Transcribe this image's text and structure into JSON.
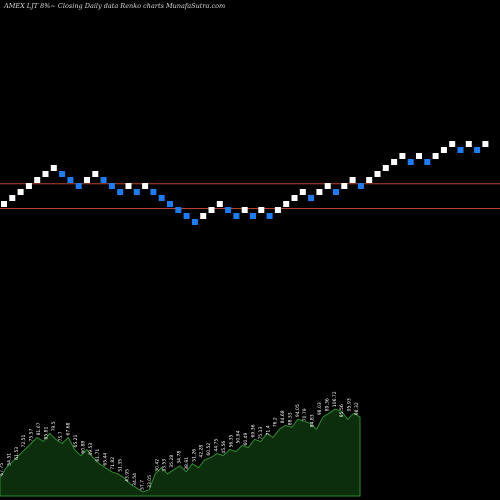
{
  "chart_data": {
    "type": "renko",
    "title": "AMEX LJT 8%~ Closing Daily data Renko charts MunafaSutra.com",
    "colors": {
      "background": "#000000",
      "up_brick": "#ffffff",
      "down_brick": "#1f7cf0",
      "reference_line": "#b5452a",
      "volume_area": "#0d2e0d",
      "volume_outline": "#2f8a2f",
      "volume_label": "#ffffff"
    },
    "reference_levels": [
      3.5,
      0.2
    ],
    "bricks": [
      {
        "level": 0.8,
        "dir": "up"
      },
      {
        "level": 1.6,
        "dir": "up"
      },
      {
        "level": 2.4,
        "dir": "up"
      },
      {
        "level": 3.2,
        "dir": "up"
      },
      {
        "level": 4.0,
        "dir": "up"
      },
      {
        "level": 4.8,
        "dir": "up"
      },
      {
        "level": 5.6,
        "dir": "up"
      },
      {
        "level": 4.8,
        "dir": "down"
      },
      {
        "level": 4.0,
        "dir": "down"
      },
      {
        "level": 3.2,
        "dir": "down"
      },
      {
        "level": 4.0,
        "dir": "up"
      },
      {
        "level": 4.8,
        "dir": "up"
      },
      {
        "level": 4.0,
        "dir": "down"
      },
      {
        "level": 3.2,
        "dir": "down"
      },
      {
        "level": 2.4,
        "dir": "down"
      },
      {
        "level": 3.2,
        "dir": "up"
      },
      {
        "level": 2.4,
        "dir": "down"
      },
      {
        "level": 3.2,
        "dir": "up"
      },
      {
        "level": 2.4,
        "dir": "down"
      },
      {
        "level": 1.6,
        "dir": "down"
      },
      {
        "level": 0.8,
        "dir": "down"
      },
      {
        "level": 0.0,
        "dir": "down"
      },
      {
        "level": -0.8,
        "dir": "down"
      },
      {
        "level": -1.6,
        "dir": "down"
      },
      {
        "level": -0.8,
        "dir": "up"
      },
      {
        "level": 0.0,
        "dir": "up"
      },
      {
        "level": 0.8,
        "dir": "up"
      },
      {
        "level": 0.0,
        "dir": "down"
      },
      {
        "level": -0.8,
        "dir": "down"
      },
      {
        "level": 0.0,
        "dir": "up"
      },
      {
        "level": -0.8,
        "dir": "down"
      },
      {
        "level": 0.0,
        "dir": "up"
      },
      {
        "level": -0.8,
        "dir": "down"
      },
      {
        "level": 0.0,
        "dir": "up"
      },
      {
        "level": 0.8,
        "dir": "up"
      },
      {
        "level": 1.6,
        "dir": "up"
      },
      {
        "level": 2.4,
        "dir": "up"
      },
      {
        "level": 1.6,
        "dir": "down"
      },
      {
        "level": 2.4,
        "dir": "up"
      },
      {
        "level": 3.2,
        "dir": "up"
      },
      {
        "level": 2.4,
        "dir": "down"
      },
      {
        "level": 3.2,
        "dir": "up"
      },
      {
        "level": 4.0,
        "dir": "up"
      },
      {
        "level": 3.2,
        "dir": "down"
      },
      {
        "level": 4.0,
        "dir": "up"
      },
      {
        "level": 4.8,
        "dir": "up"
      },
      {
        "level": 5.6,
        "dir": "up"
      },
      {
        "level": 6.4,
        "dir": "up"
      },
      {
        "level": 7.2,
        "dir": "up"
      },
      {
        "level": 6.4,
        "dir": "down"
      },
      {
        "level": 7.2,
        "dir": "up"
      },
      {
        "level": 6.4,
        "dir": "down"
      },
      {
        "level": 7.2,
        "dir": "up"
      },
      {
        "level": 8.0,
        "dir": "up"
      },
      {
        "level": 8.8,
        "dir": "up"
      },
      {
        "level": 8.0,
        "dir": "down"
      },
      {
        "level": 8.8,
        "dir": "up"
      },
      {
        "level": 8.0,
        "dir": "down"
      },
      {
        "level": 8.8,
        "dir": "up"
      }
    ],
    "volume_area": [
      0.18,
      0.28,
      0.34,
      0.4,
      0.46,
      0.52,
      0.58,
      0.54,
      0.62,
      0.56,
      0.52,
      0.58,
      0.46,
      0.4,
      0.46,
      0.38,
      0.32,
      0.28,
      0.24,
      0.22,
      0.18,
      0.12,
      0.08,
      0.04,
      0.06,
      0.22,
      0.28,
      0.22,
      0.26,
      0.3,
      0.24,
      0.32,
      0.28,
      0.36,
      0.38,
      0.42,
      0.4,
      0.46,
      0.44,
      0.5,
      0.48,
      0.56,
      0.54,
      0.62,
      0.58,
      0.66,
      0.7,
      0.68,
      0.76,
      0.74,
      0.72,
      0.66,
      0.78,
      0.82,
      0.86,
      0.84,
      0.76,
      0.82,
      0.78
    ],
    "volume_labels": [
      "67.75",
      "54.51",
      "61.53",
      "72.51",
      "75.57",
      "81.07",
      "85.81",
      "79.5",
      "75.7",
      "67.68",
      "65.21",
      "60.88",
      "49.53",
      "61.71",
      "65.44",
      "71.82",
      "51.35",
      "43.95",
      "34.54",
      "57.7",
      "33.05",
      "30.42",
      "33.53",
      "35.28",
      "34.78",
      "38.91",
      "51.26",
      "42.28",
      "60.52",
      "44.75",
      "45.56",
      "56.35",
      "50.94",
      "60.49",
      "69.36",
      "75.13",
      "71.4",
      "76.2",
      "84.68",
      "88.33",
      "94.05",
      "70.79",
      "84.83",
      "98.03",
      "89.36",
      "106.72",
      "85.56",
      "95.93",
      "98.32"
    ]
  }
}
